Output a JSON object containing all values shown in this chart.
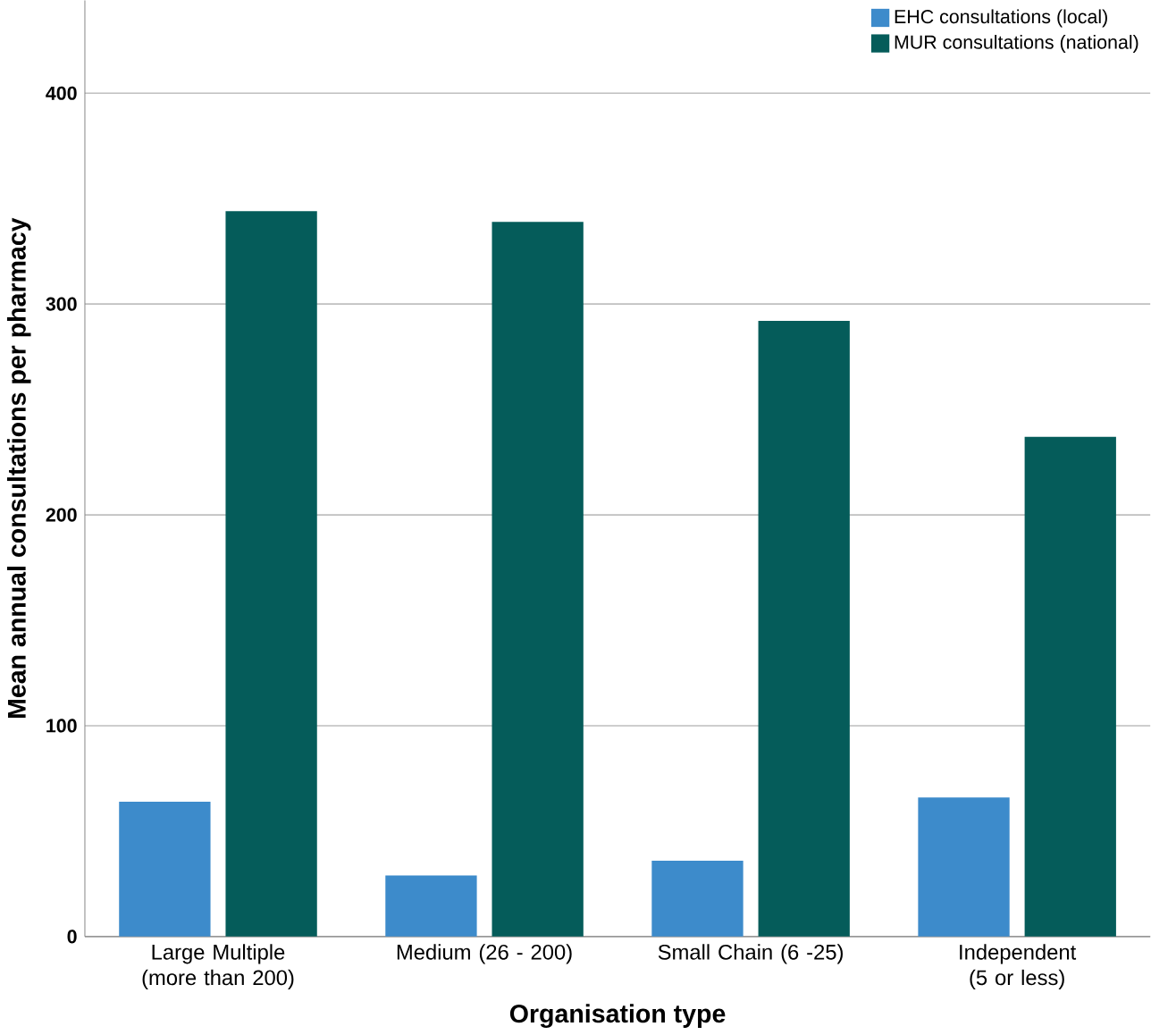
{
  "chart_data": {
    "type": "bar",
    "xlabel": "Organisation type",
    "ylabel": "Mean annual consultations per pharmacy",
    "categories": [
      "Large Multiple (more than 200)",
      "Medium (26 - 200)",
      "Small Chain (6 -25)",
      "Independent (5 or less)"
    ],
    "series": [
      {
        "name": "EHC consultations (local)",
        "color": "#3d8bcb",
        "values": [
          64,
          29,
          36,
          66
        ]
      },
      {
        "name": "MUR consultations (national)",
        "color": "#055c5a",
        "values": [
          344,
          339,
          292,
          237
        ]
      }
    ],
    "ylim": [
      0,
      444
    ],
    "yticks": [
      0,
      100,
      200,
      300,
      400
    ],
    "grid": "y",
    "legend": "top right"
  }
}
